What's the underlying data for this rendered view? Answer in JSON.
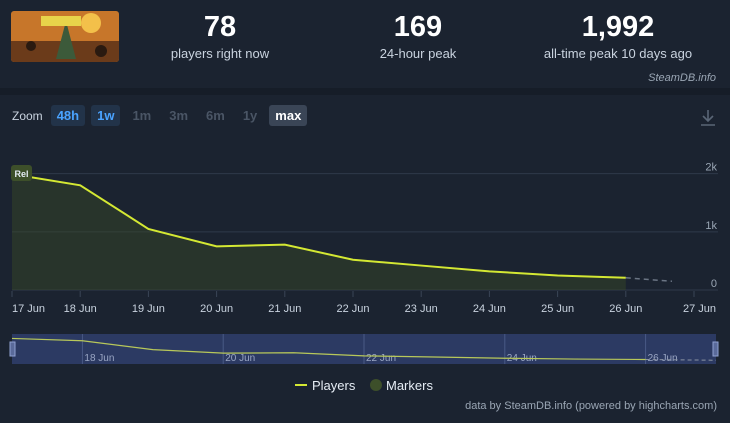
{
  "header": {
    "stats": [
      {
        "value": "78",
        "label": "players right now"
      },
      {
        "value": "169",
        "label": "24-hour peak"
      },
      {
        "value": "1,992",
        "label": "all-time peak 10 days ago"
      }
    ],
    "brand": "SteamDB.info"
  },
  "zoom": {
    "label": "Zoom",
    "buttons": [
      {
        "label": "48h",
        "state": "on"
      },
      {
        "label": "1w",
        "state": "on"
      },
      {
        "label": "1m",
        "state": "off"
      },
      {
        "label": "3m",
        "state": "off"
      },
      {
        "label": "6m",
        "state": "off"
      },
      {
        "label": "1y",
        "state": "off"
      },
      {
        "label": "max",
        "state": "sel"
      }
    ]
  },
  "footer": {
    "credit": "data by SteamDB.info (powered by highcharts.com)"
  },
  "colors": {
    "line": "#d4e833",
    "marker": "#3d4f2a",
    "navigator_bg": "#2c3a63"
  },
  "chart_data": {
    "type": "line",
    "x": [
      "17 Jun",
      "18 Jun",
      "19 Jun",
      "20 Jun",
      "21 Jun",
      "22 Jun",
      "23 Jun",
      "24 Jun",
      "25 Jun",
      "26 Jun"
    ],
    "series": [
      {
        "name": "Players",
        "values": [
          1992,
          1800,
          1050,
          750,
          780,
          520,
          420,
          320,
          250,
          210
        ]
      }
    ],
    "projection": {
      "from": "26 Jun",
      "to": "27 Jun",
      "values": [
        210,
        150
      ]
    },
    "x_ticks": [
      "17 Jun",
      "18 Jun",
      "19 Jun",
      "20 Jun",
      "21 Jun",
      "22 Jun",
      "23 Jun",
      "24 Jun",
      "25 Jun",
      "26 Jun",
      "27 Jun"
    ],
    "y_ticks": [
      "0",
      "1k",
      "2k"
    ],
    "ylim": [
      0,
      2200
    ],
    "marker_label": "Rel",
    "legend": [
      "Players",
      "Markers"
    ],
    "legend_position": "bottom-center",
    "navigator_ticks": [
      "18 Jun",
      "20 Jun",
      "22 Jun",
      "24 Jun",
      "26 Jun"
    ],
    "grid": true
  }
}
